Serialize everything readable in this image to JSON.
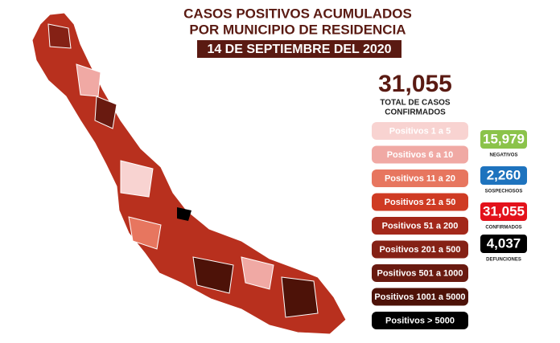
{
  "header": {
    "title_lines": [
      "CASOS POSITIVOS ACUMULADOS",
      "POR MUNICIPIO DE RESIDENCIA"
    ],
    "date": "14 DE SEPTIEMBRE DEL 2020"
  },
  "total": {
    "value": "31,055",
    "label_lines": [
      "TOTAL DE CASOS",
      "CONFIRMADOS"
    ]
  },
  "legend": [
    {
      "label": "Positivos 1 a 5",
      "color": "#f8d3d1"
    },
    {
      "label": "Positivos 6 a 10",
      "color": "#f0a9a4"
    },
    {
      "label": "Positivos 11 a 20",
      "color": "#e7765f"
    },
    {
      "label": "Positivos 21 a 50",
      "color": "#cf3b23"
    },
    {
      "label": "Positivos 51 a 200",
      "color": "#a3281a"
    },
    {
      "label": "Positivos 201 a 500",
      "color": "#852115"
    },
    {
      "label": "Positivos 501 a 1000",
      "color": "#691a10"
    },
    {
      "label": "Positivos 1001 a 5000",
      "color": "#4d1208"
    },
    {
      "label": "Positivos > 5000",
      "color": "#000000"
    }
  ],
  "stats": [
    {
      "value": "15,979",
      "label": "NEGATIVOS",
      "color": "#8bc34a"
    },
    {
      "value": "2,260",
      "label": "SOSPECHOSOS",
      "color": "#1e73be"
    },
    {
      "value": "31,055",
      "label": "CONFIRMADOS",
      "color": "#e3121b"
    },
    {
      "value": "4,037",
      "label": "DEFUNCIONES",
      "color": "#000000"
    }
  ]
}
